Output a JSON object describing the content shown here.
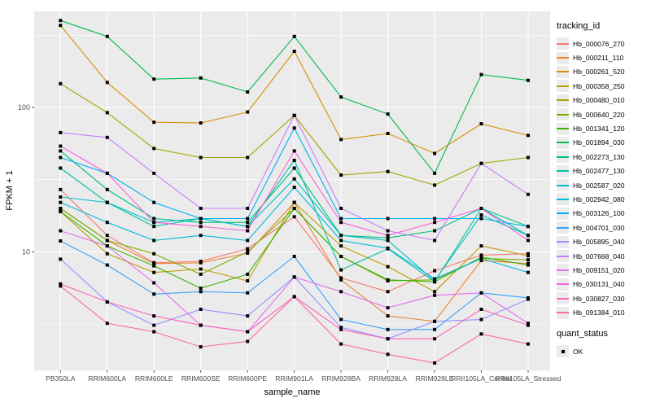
{
  "figure": {
    "background": "#FFFFFF",
    "panel_background": "#EBEBEB",
    "grid_color": "#FFFFFF",
    "axis_text_color": "#4D4D4D",
    "tick_color": "#333333",
    "marker_color": "#000000"
  },
  "axes": {
    "x_title": "sample_name",
    "y_title": "FPKM + 1"
  },
  "legend": {
    "tracking_title": "tracking_id",
    "quant_title": "quant_status",
    "quant_items": [
      {
        "label": "OK",
        "marker": "black-square"
      }
    ]
  },
  "chart_data": {
    "type": "line",
    "title": "",
    "xlabel": "sample_name",
    "ylabel": "FPKM + 1",
    "legend_position": "right",
    "grid": "on",
    "point_marker": "filled-black-square",
    "y_axis": {
      "scale": "log10",
      "tick_values": [
        10,
        100
      ],
      "tick_labels": [
        "10",
        "100"
      ],
      "minor_gridlines": [
        3.162,
        31.62,
        316.2
      ],
      "range_approx": [
        1.5,
        460
      ]
    },
    "x_categories": [
      "PB350LA",
      "RRIM600LA",
      "RRIM600LE",
      "RRIM600SE",
      "RRIM600PE",
      "RRIM901LA",
      "RRIM928BA",
      "RRIM928LA",
      "RRIM928LE",
      "RRII105LA_Control",
      "RRII105LA_Stressed"
    ],
    "series": [
      {
        "name": "Hb_000076_270",
        "color": "#F8766D",
        "values": [
          27,
          13,
          8.4,
          8.6,
          10.5,
          17.5,
          6.6,
          5.3,
          7.4,
          9.5,
          9.7
        ]
      },
      {
        "name": "Hb_000211_110",
        "color": "#EA8331",
        "values": [
          20,
          12,
          8.3,
          8.4,
          9.8,
          22,
          6.4,
          3.6,
          3.3,
          8.7,
          8.3
        ]
      },
      {
        "name": "Hb_000261_520",
        "color": "#D89000",
        "values": [
          370,
          149,
          79,
          78,
          93,
          245,
          60,
          66,
          48,
          77,
          64
        ]
      },
      {
        "name": "Hb_000358_250",
        "color": "#C09B00",
        "values": [
          19,
          9.7,
          7.2,
          7.6,
          6.3,
          22,
          11,
          7.9,
          5.3,
          11,
          9.4
        ]
      },
      {
        "name": "Hb_000480_010",
        "color": "#A3A500",
        "values": [
          146,
          92,
          52,
          45,
          45,
          88,
          34,
          36,
          29,
          41,
          45
        ]
      },
      {
        "name": "Hb_000640_220",
        "color": "#7CAE00",
        "values": [
          20,
          12,
          9.7,
          7.0,
          10,
          20,
          9.3,
          6.3,
          6.4,
          9.0,
          8.8
        ]
      },
      {
        "name": "Hb_001341_120",
        "color": "#39B600",
        "values": [
          19,
          11,
          8.0,
          5.6,
          7.0,
          20,
          9.3,
          6.4,
          6.2,
          9.2,
          8.1
        ]
      },
      {
        "name": "Hb_001894_030",
        "color": "#00BB4E",
        "values": [
          400,
          310,
          157,
          160,
          128,
          310,
          118,
          90,
          35,
          169,
          154
        ]
      },
      {
        "name": "Hb_002273_130",
        "color": "#00BF7D",
        "values": [
          50,
          27,
          17,
          16,
          16,
          38,
          13,
          12.5,
          14,
          20,
          15
        ]
      },
      {
        "name": "Hb_002477_130",
        "color": "#00C1A3",
        "values": [
          38,
          22,
          15,
          17,
          15,
          43,
          7.5,
          10.5,
          6.2,
          20,
          13
        ]
      },
      {
        "name": "Hb_002587_020",
        "color": "#00BFC4",
        "values": [
          24,
          22,
          16,
          17,
          15,
          32,
          13,
          12,
          6.3,
          18,
          13
        ]
      },
      {
        "name": "Hb_002942_080",
        "color": "#00BAE0",
        "values": [
          22,
          16,
          12,
          13,
          12,
          28,
          12,
          10.6,
          6.5,
          9.0,
          7.2
        ]
      },
      {
        "name": "Hb_003126_100",
        "color": "#00B0F6",
        "values": [
          45,
          35,
          22,
          17,
          17,
          72,
          17,
          17,
          17,
          17,
          15
        ]
      },
      {
        "name": "Hb_004701_030",
        "color": "#35A2FF",
        "values": [
          11.9,
          8.1,
          5.1,
          5.3,
          5.2,
          9.3,
          3.4,
          2.9,
          2.9,
          5.2,
          4.8
        ]
      },
      {
        "name": "Hb_005895_040",
        "color": "#9590FF",
        "values": [
          8.9,
          4.5,
          3.1,
          4.0,
          3.6,
          6.7,
          3.0,
          2.5,
          3.3,
          3.4,
          4.7
        ]
      },
      {
        "name": "Hb_007668_040",
        "color": "#C77CFF",
        "values": [
          67,
          62,
          35,
          20,
          20,
          88,
          20,
          14,
          12,
          41,
          25
        ]
      },
      {
        "name": "Hb_009151_020",
        "color": "#E76BF3",
        "values": [
          14,
          11,
          6.1,
          3.1,
          2.8,
          6.7,
          5.3,
          4.1,
          5.0,
          5.2,
          3.2
        ]
      },
      {
        "name": "Hb_030131_040",
        "color": "#FA62DB",
        "values": [
          54,
          35,
          16,
          15,
          14,
          50,
          16,
          13,
          16,
          20,
          12
        ]
      },
      {
        "name": "Hb_030827_030",
        "color": "#FF62BC",
        "values": [
          6.0,
          4.5,
          3.6,
          3.1,
          2.8,
          4.9,
          2.9,
          2.5,
          2.5,
          4.0,
          3.1
        ]
      },
      {
        "name": "Hb_091384_010",
        "color": "#FF6A98",
        "values": [
          5.8,
          3.2,
          2.8,
          2.2,
          2.4,
          4.9,
          2.3,
          1.95,
          1.7,
          2.7,
          2.3
        ]
      }
    ]
  }
}
